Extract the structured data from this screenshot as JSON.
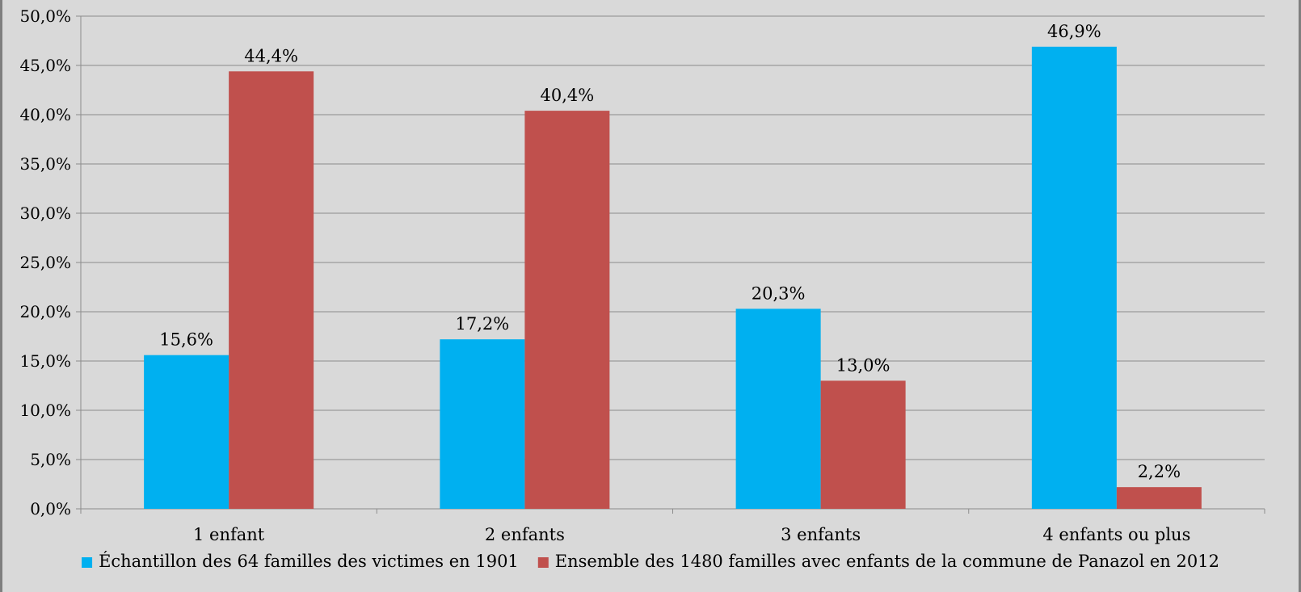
{
  "chart_data": {
    "type": "bar",
    "title": "",
    "xlabel": "",
    "ylabel": "",
    "categories": [
      "1 enfant",
      "2 enfants",
      "3 enfants",
      "4 enfants ou plus"
    ],
    "series": [
      {
        "name": "Échantillon des 64 familles des victimes en 1901",
        "color": "#00b0f0",
        "values": [
          15.6,
          17.2,
          20.3,
          46.9
        ],
        "labels": [
          "15,6%",
          "17,2%",
          "20,3%",
          "46,9%"
        ]
      },
      {
        "name": "Ensemble des 1480 familles avec enfants de la commune de Panazol en 2012",
        "color": "#c0504d",
        "values": [
          44.4,
          40.4,
          13.0,
          2.2
        ],
        "labels": [
          "44,4%",
          "40,4%",
          "13,0%",
          "2,2%"
        ]
      }
    ],
    "ylim": [
      0,
      50
    ],
    "yticks": [
      0,
      5,
      10,
      15,
      20,
      25,
      30,
      35,
      40,
      45,
      50
    ],
    "ytick_labels": [
      "0,0%",
      "5,0%",
      "10,0%",
      "15,0%",
      "20,0%",
      "25,0%",
      "30,0%",
      "35,0%",
      "40,0%",
      "45,0%",
      "50,0%"
    ],
    "grid": true,
    "legend_position": "bottom",
    "background_color": "#d9d9d9",
    "gridline_color": "#8c8c8c"
  }
}
